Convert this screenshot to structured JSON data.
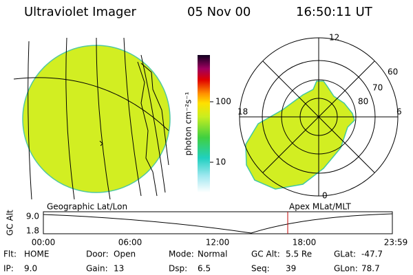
{
  "header": {
    "instrument": "Ultraviolet Imager",
    "date": "05 Nov 00",
    "time": "16:50:11 UT"
  },
  "colorbar": {
    "label": "photon cm⁻²s⁻¹",
    "ticks": [
      "100",
      "10"
    ]
  },
  "polar": {
    "mlt": [
      "12",
      "18",
      "6",
      "0"
    ],
    "mlat": [
      "60",
      "70",
      "80"
    ]
  },
  "timeline": {
    "left_title": "Geographic Lat/Lon",
    "right_title": "Apex MLat/MLT",
    "y_label": "GC Alt",
    "y_ticks": [
      "9.0",
      "1.8"
    ],
    "x_ticks": [
      "00:00",
      "06:00",
      "12:00",
      "18:00",
      "23:59"
    ]
  },
  "status": [
    [
      {
        "label": "Flt:",
        "value": "HOME"
      },
      {
        "label": "Door:",
        "value": "Open"
      },
      {
        "label": "Mode:",
        "value": "Normal"
      },
      {
        "label": "GC Alt:",
        "value": "5.5 Re"
      },
      {
        "label": "GLat:",
        "value": "-47.7"
      }
    ],
    [
      {
        "label": "IP:",
        "value": "9.0"
      },
      {
        "label": "Gain:",
        "value": "13"
      },
      {
        "label": "Dsp:",
        "value": "6.5"
      },
      {
        "label": "Seq:",
        "value": "39"
      },
      {
        "label": "GLon:",
        "value": "78.7"
      }
    ]
  ]
}
